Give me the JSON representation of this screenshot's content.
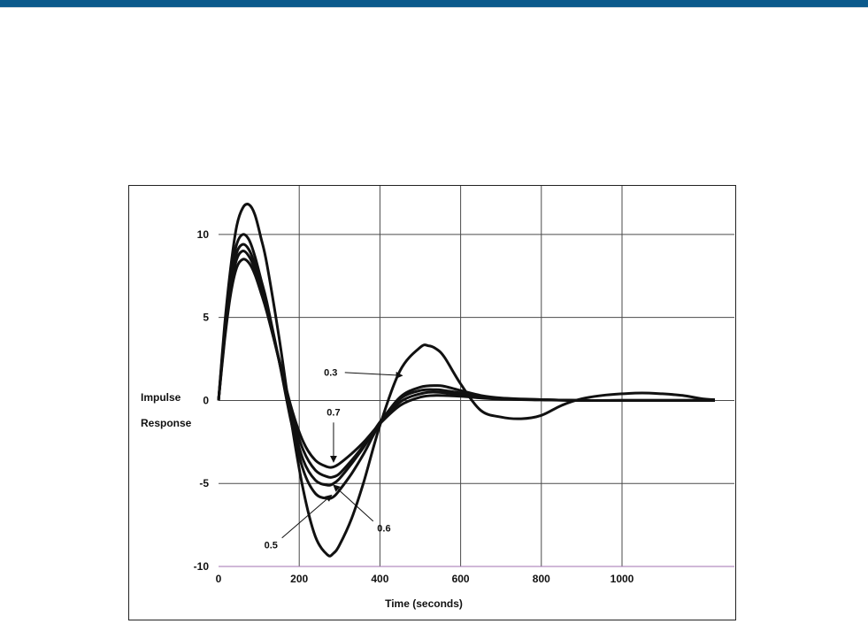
{
  "colors": {
    "header_bar": "#0b5a8c",
    "grid": "#4a4a4a",
    "curve": "#111111",
    "axis_floor": "#a070b0"
  },
  "chart_data": {
    "type": "line",
    "xlabel": "Time (seconds)",
    "ylabel_lines": [
      "Impulse",
      "Response"
    ],
    "xlim": [
      0,
      1250
    ],
    "ylim": [
      -10,
      12.5
    ],
    "xticks": [
      0,
      200,
      400,
      600,
      800,
      1000
    ],
    "yticks": [
      10,
      5,
      0,
      -5,
      -10
    ],
    "grid": true,
    "series": [
      {
        "name": "0.3",
        "x": [
          0,
          15,
          30,
          45,
          60,
          75,
          90,
          105,
          120,
          150,
          180,
          210,
          240,
          270,
          285,
          300,
          330,
          360,
          400,
          450,
          500,
          520,
          540,
          560,
          600,
          650,
          700,
          750,
          800,
          850,
          900,
          950,
          1000,
          1050,
          1100,
          1150,
          1200,
          1230
        ],
        "y": [
          0,
          4.5,
          8,
          10.5,
          11.6,
          11.8,
          11.2,
          9.8,
          8.2,
          3.8,
          -1.2,
          -5.4,
          -8.2,
          -9.3,
          -9.2,
          -8.7,
          -7.1,
          -4.9,
          -1.5,
          1.8,
          3.2,
          3.3,
          3.1,
          2.6,
          1,
          -0.6,
          -1.0,
          -1.1,
          -0.9,
          -0.3,
          0.1,
          0.3,
          0.4,
          0.45,
          0.4,
          0.3,
          0.1,
          0.05
        ]
      },
      {
        "name": "",
        "x": [
          0,
          15,
          30,
          45,
          60,
          75,
          90,
          105,
          120,
          150,
          180,
          210,
          240,
          270,
          285,
          300,
          330,
          360,
          400,
          450,
          500,
          540,
          560,
          600,
          650,
          700,
          800,
          900,
          1000,
          1100,
          1230
        ],
        "y": [
          0,
          4.2,
          7.6,
          9.4,
          10.0,
          9.7,
          8.7,
          7.3,
          5.9,
          2.4,
          -1.3,
          -4.2,
          -5.6,
          -5.9,
          -5.8,
          -5.4,
          -4.4,
          -3.2,
          -1.4,
          0.2,
          0.8,
          0.9,
          0.85,
          0.6,
          0.3,
          0.15,
          0.05,
          0,
          0,
          0,
          0
        ]
      },
      {
        "name": "0.5",
        "x": [
          0,
          15,
          30,
          45,
          60,
          75,
          90,
          105,
          120,
          150,
          180,
          210,
          240,
          270,
          285,
          300,
          330,
          360,
          400,
          450,
          500,
          540,
          560,
          600,
          650,
          700,
          800,
          900,
          1000,
          1100,
          1230
        ],
        "y": [
          0,
          4.0,
          7.2,
          8.9,
          9.4,
          9.1,
          8.2,
          6.9,
          5.6,
          2.4,
          -1.0,
          -3.6,
          -4.8,
          -5.1,
          -5.0,
          -4.7,
          -3.8,
          -2.8,
          -1.3,
          0.1,
          0.6,
          0.65,
          0.6,
          0.45,
          0.25,
          0.1,
          0.05,
          0,
          0,
          0,
          0
        ]
      },
      {
        "name": "0.6",
        "x": [
          0,
          15,
          30,
          45,
          60,
          75,
          90,
          105,
          120,
          150,
          180,
          210,
          240,
          270,
          285,
          300,
          330,
          360,
          400,
          450,
          500,
          540,
          600,
          650,
          700,
          800,
          900,
          1000,
          1100,
          1230
        ],
        "y": [
          0,
          3.8,
          6.8,
          8.5,
          9.0,
          8.7,
          7.9,
          6.7,
          5.4,
          2.4,
          -0.7,
          -3.0,
          -4.2,
          -4.6,
          -4.6,
          -4.4,
          -3.6,
          -2.7,
          -1.4,
          -0.1,
          0.4,
          0.5,
          0.35,
          0.2,
          0.1,
          0.05,
          0,
          0,
          0,
          0
        ]
      },
      {
        "name": "0.7",
        "x": [
          0,
          15,
          30,
          45,
          60,
          75,
          90,
          105,
          120,
          150,
          180,
          210,
          240,
          270,
          285,
          300,
          330,
          360,
          400,
          450,
          500,
          540,
          600,
          650,
          700,
          800,
          900,
          1000,
          1100,
          1230
        ],
        "y": [
          0,
          3.6,
          6.4,
          8.0,
          8.5,
          8.3,
          7.6,
          6.5,
          5.3,
          2.5,
          -0.4,
          -2.5,
          -3.6,
          -4.0,
          -4.0,
          -3.8,
          -3.2,
          -2.5,
          -1.4,
          -0.3,
          0.2,
          0.3,
          0.25,
          0.15,
          0.08,
          0.03,
          0,
          0,
          0,
          0
        ]
      }
    ],
    "annotations": [
      {
        "label": "0.3",
        "text_at": [
          278,
          1.5
        ],
        "arrow_to": [
          455,
          1.5
        ]
      },
      {
        "label": "0.7",
        "text_at": [
          285,
          -0.9
        ],
        "arrow_to": [
          285,
          -3.7
        ]
      },
      {
        "label": "0.6",
        "text_at": [
          410,
          -7.9
        ],
        "arrow_to": [
          285,
          -5.1
        ]
      },
      {
        "label": "0.5",
        "text_at": [
          130,
          -8.9
        ],
        "arrow_to": [
          280,
          -5.7
        ]
      }
    ]
  }
}
